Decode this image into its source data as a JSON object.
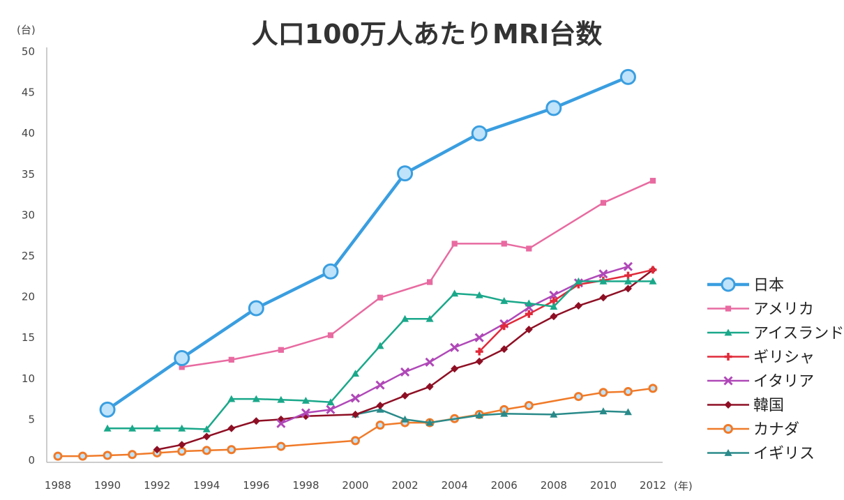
{
  "chart_data": {
    "type": "line",
    "title": "人口100万人あたりMRI台数",
    "y_unit": "(台)",
    "x_unit": "(年)",
    "ylim": [
      0,
      50
    ],
    "xlim": [
      1988,
      2012
    ],
    "grid": false,
    "legend_position": "right",
    "x_ticks": [
      "1988",
      "1990",
      "1992",
      "1994",
      "1996",
      "1998",
      "2000",
      "2002",
      "2004",
      "2006",
      "2008",
      "2010",
      "2012"
    ],
    "y_ticks": [
      "0",
      "5",
      "10",
      "15",
      "20",
      "25",
      "30",
      "35",
      "40",
      "45",
      "50"
    ],
    "series": [
      {
        "name": "日本",
        "color": "#3a9ee0",
        "marker": "circle",
        "points": [
          [
            1990,
            6.2
          ],
          [
            1993,
            12.5
          ],
          [
            1996,
            18.6
          ],
          [
            1999,
            23.1
          ],
          [
            2002,
            35.1
          ],
          [
            2005,
            40.0
          ],
          [
            2008,
            43.1
          ],
          [
            2011,
            46.9
          ]
        ]
      },
      {
        "name": "アメリカ",
        "color": "#e86aa0",
        "marker": "square",
        "points": [
          [
            1993,
            11.4
          ],
          [
            1995,
            12.3
          ],
          [
            1997,
            13.5
          ],
          [
            1999,
            15.3
          ],
          [
            2001,
            19.9
          ],
          [
            2003,
            21.8
          ],
          [
            2004,
            26.5
          ],
          [
            2006,
            26.5
          ],
          [
            2007,
            25.9
          ],
          [
            2010,
            31.5
          ],
          [
            2012,
            34.2
          ]
        ]
      },
      {
        "name": "アイスランド",
        "color": "#1aa88a",
        "marker": "triangle",
        "points": [
          [
            1990,
            3.9
          ],
          [
            1991,
            3.9
          ],
          [
            1992,
            3.9
          ],
          [
            1993,
            3.9
          ],
          [
            1994,
            3.8
          ],
          [
            1995,
            7.5
          ],
          [
            1996,
            7.5
          ],
          [
            1997,
            7.4
          ],
          [
            1998,
            7.3
          ],
          [
            1999,
            7.1
          ],
          [
            2000,
            10.6
          ],
          [
            2001,
            14.0
          ],
          [
            2002,
            17.3
          ],
          [
            2003,
            17.3
          ],
          [
            2004,
            20.4
          ],
          [
            2005,
            20.2
          ],
          [
            2006,
            19.5
          ],
          [
            2007,
            19.2
          ],
          [
            2008,
            18.8
          ],
          [
            2009,
            21.9
          ],
          [
            2010,
            21.9
          ],
          [
            2011,
            21.9
          ],
          [
            2012,
            21.9
          ]
        ]
      },
      {
        "name": "ギリシャ",
        "color": "#e02a3a",
        "marker": "plus",
        "points": [
          [
            2005,
            13.3
          ],
          [
            2006,
            16.4
          ],
          [
            2007,
            17.9
          ],
          [
            2008,
            19.5
          ],
          [
            2009,
            21.5
          ],
          [
            2010,
            22.0
          ],
          [
            2011,
            22.6
          ],
          [
            2012,
            23.3
          ]
        ]
      },
      {
        "name": "イタリア",
        "color": "#b048b8",
        "marker": "x",
        "points": [
          [
            1997,
            4.5
          ],
          [
            1998,
            5.8
          ],
          [
            1999,
            6.2
          ],
          [
            2000,
            7.6
          ],
          [
            2001,
            9.2
          ],
          [
            2002,
            10.8
          ],
          [
            2003,
            12.0
          ],
          [
            2004,
            13.8
          ],
          [
            2005,
            15.0
          ],
          [
            2006,
            16.7
          ],
          [
            2007,
            18.7
          ],
          [
            2008,
            20.2
          ],
          [
            2009,
            21.7
          ],
          [
            2010,
            22.8
          ],
          [
            2011,
            23.7
          ]
        ]
      },
      {
        "name": "韓国",
        "color": "#8e0f24",
        "marker": "diamond",
        "points": [
          [
            1992,
            1.3
          ],
          [
            1993,
            1.9
          ],
          [
            1994,
            2.9
          ],
          [
            1995,
            3.9
          ],
          [
            1996,
            4.8
          ],
          [
            1997,
            5.0
          ],
          [
            1998,
            5.4
          ],
          [
            2000,
            5.6
          ],
          [
            2001,
            6.7
          ],
          [
            2002,
            7.9
          ],
          [
            2003,
            9.0
          ],
          [
            2004,
            11.2
          ],
          [
            2005,
            12.1
          ],
          [
            2006,
            13.6
          ],
          [
            2007,
            16.0
          ],
          [
            2008,
            17.6
          ],
          [
            2009,
            18.9
          ],
          [
            2010,
            19.9
          ],
          [
            2011,
            21.0
          ],
          [
            2012,
            23.3
          ]
        ]
      },
      {
        "name": "カナダ",
        "color": "#f07a28",
        "marker": "circle",
        "points": [
          [
            1988,
            0.5
          ],
          [
            1989,
            0.5
          ],
          [
            1990,
            0.6
          ],
          [
            1991,
            0.7
          ],
          [
            1992,
            0.9
          ],
          [
            1993,
            1.1
          ],
          [
            1994,
            1.2
          ],
          [
            1995,
            1.3
          ],
          [
            1997,
            1.7
          ],
          [
            2000,
            2.4
          ],
          [
            2001,
            4.3
          ],
          [
            2002,
            4.6
          ],
          [
            2003,
            4.6
          ],
          [
            2004,
            5.1
          ],
          [
            2005,
            5.6
          ],
          [
            2006,
            6.2
          ],
          [
            2007,
            6.7
          ],
          [
            2009,
            7.8
          ],
          [
            2010,
            8.3
          ],
          [
            2011,
            8.4
          ],
          [
            2012,
            8.8
          ]
        ]
      },
      {
        "name": "イギリス",
        "color": "#2a8a8a",
        "marker": "triangle",
        "points": [
          [
            2000,
            5.6
          ],
          [
            2001,
            6.2
          ],
          [
            2002,
            5.0
          ],
          [
            2003,
            4.6
          ],
          [
            2005,
            5.5
          ],
          [
            2006,
            5.7
          ],
          [
            2008,
            5.6
          ],
          [
            2010,
            6.0
          ],
          [
            2011,
            5.9
          ]
        ]
      }
    ]
  }
}
